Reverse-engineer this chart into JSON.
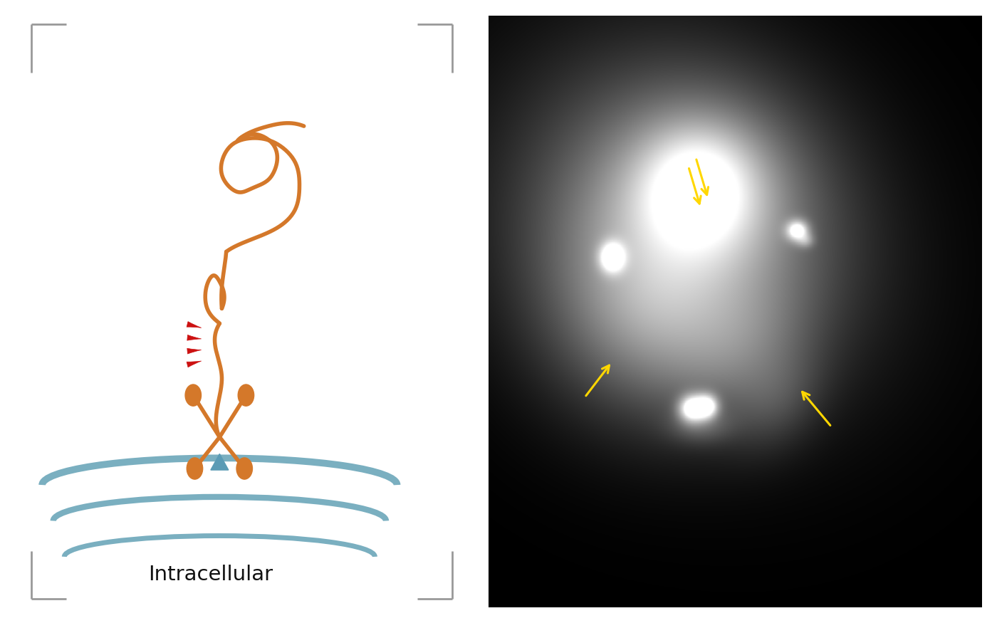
{
  "fig_width": 14.0,
  "fig_height": 8.75,
  "fig_bg_color": "#ffffff",
  "left_bg_color": "#ffffff",
  "right_bg_color": "#000000",
  "orange_color": "#D4782A",
  "red_color": "#CC1111",
  "blue_color": "#7AAFC0",
  "arrow_color": "#FFD700",
  "text_color": "#111111",
  "intracellular_text": "Intracellular",
  "intracellular_fontsize": 21,
  "border_color": "#999999",
  "lw_orange": 4.0
}
